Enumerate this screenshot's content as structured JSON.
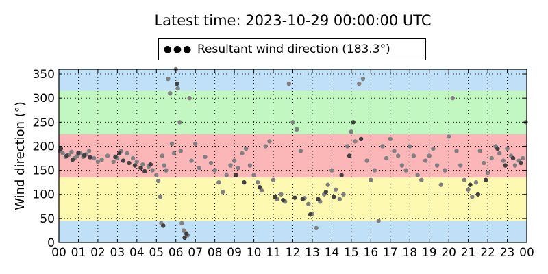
{
  "title": "Latest time: 2023-10-29 00:00:00 UTC",
  "legend": {
    "marker_icon": "three-dots-icon",
    "label": "Resultant wind direction (183.3°)"
  },
  "chart_data": {
    "type": "scatter",
    "title": "Latest time: 2023-10-29 00:00:00 UTC",
    "xlabel": "",
    "ylabel": "Wind direction (°)",
    "xlim": [
      0,
      24
    ],
    "ylim": [
      0,
      360
    ],
    "x_ticks": [
      "00",
      "01",
      "02",
      "03",
      "04",
      "05",
      "06",
      "07",
      "08",
      "09",
      "10",
      "11",
      "12",
      "13",
      "14",
      "15",
      "16",
      "17",
      "18",
      "19",
      "20",
      "21",
      "22",
      "23",
      "00"
    ],
    "y_ticks": [
      0,
      50,
      100,
      150,
      200,
      250,
      300,
      350
    ],
    "grid": true,
    "legend_position": "top-center",
    "series": [
      {
        "name": "Resultant wind direction (183.3°)",
        "color": "#808080",
        "points": [
          [
            0.05,
            190
          ],
          [
            0.2,
            185
          ],
          [
            0.35,
            178
          ],
          [
            0.5,
            182
          ],
          [
            0.65,
            188
          ],
          [
            0.8,
            175
          ],
          [
            0.95,
            180
          ],
          [
            1.1,
            185
          ],
          [
            1.25,
            178
          ],
          [
            1.4,
            183
          ],
          [
            1.55,
            190
          ],
          [
            1.8,
            175
          ],
          [
            2.0,
            168
          ],
          [
            2.2,
            172
          ],
          [
            2.5,
            180
          ],
          [
            2.8,
            168
          ],
          [
            3.0,
            175
          ],
          [
            3.2,
            190
          ],
          [
            3.5,
            185
          ],
          [
            3.8,
            175
          ],
          [
            4.0,
            168
          ],
          [
            4.3,
            162
          ],
          [
            4.6,
            158
          ],
          [
            4.8,
            150
          ],
          [
            5.0,
            140
          ],
          [
            5.1,
            128
          ],
          [
            5.2,
            95
          ],
          [
            5.25,
            40
          ],
          [
            5.3,
            180
          ],
          [
            5.4,
            160
          ],
          [
            5.5,
            150
          ],
          [
            5.6,
            340
          ],
          [
            5.7,
            310
          ],
          [
            5.8,
            205
          ],
          [
            5.9,
            185
          ],
          [
            6.0,
            360
          ],
          [
            6.1,
            320
          ],
          [
            6.2,
            250
          ],
          [
            6.25,
            190
          ],
          [
            6.3,
            40
          ],
          [
            6.4,
            25
          ],
          [
            6.5,
            20
          ],
          [
            6.6,
            15
          ],
          [
            6.7,
            300
          ],
          [
            6.8,
            170
          ],
          [
            7.0,
            205
          ],
          [
            7.2,
            155
          ],
          [
            7.5,
            178
          ],
          [
            7.8,
            165
          ],
          [
            8.0,
            150
          ],
          [
            8.2,
            125
          ],
          [
            8.4,
            105
          ],
          [
            8.6,
            140
          ],
          [
            8.8,
            160
          ],
          [
            9.0,
            170
          ],
          [
            9.2,
            155
          ],
          [
            9.4,
            185
          ],
          [
            9.6,
            195
          ],
          [
            9.8,
            160
          ],
          [
            10.0,
            140
          ],
          [
            10.2,
            125
          ],
          [
            10.4,
            108
          ],
          [
            10.6,
            200
          ],
          [
            10.8,
            210
          ],
          [
            11.0,
            130
          ],
          [
            11.2,
            90
          ],
          [
            11.4,
            100
          ],
          [
            11.6,
            85
          ],
          [
            11.8,
            330
          ],
          [
            12.0,
            250
          ],
          [
            12.2,
            235
          ],
          [
            12.4,
            190
          ],
          [
            12.6,
            92
          ],
          [
            12.8,
            80
          ],
          [
            13.0,
            60
          ],
          [
            13.2,
            30
          ],
          [
            13.4,
            85
          ],
          [
            13.6,
            100
          ],
          [
            13.8,
            120
          ],
          [
            14.0,
            150
          ],
          [
            14.2,
            110
          ],
          [
            14.4,
            90
          ],
          [
            14.6,
            100
          ],
          [
            14.8,
            200
          ],
          [
            15.0,
            230
          ],
          [
            15.2,
            210
          ],
          [
            15.4,
            330
          ],
          [
            15.6,
            340
          ],
          [
            15.8,
            170
          ],
          [
            16.0,
            130
          ],
          [
            16.2,
            150
          ],
          [
            16.4,
            45
          ],
          [
            16.6,
            200
          ],
          [
            16.8,
            175
          ],
          [
            17.0,
            215
          ],
          [
            17.2,
            190
          ],
          [
            17.4,
            180
          ],
          [
            17.6,
            160
          ],
          [
            17.8,
            150
          ],
          [
            18.0,
            200
          ],
          [
            18.2,
            180
          ],
          [
            18.4,
            140
          ],
          [
            18.6,
            130
          ],
          [
            18.8,
            170
          ],
          [
            19.0,
            180
          ],
          [
            19.2,
            195
          ],
          [
            19.4,
            160
          ],
          [
            19.6,
            120
          ],
          [
            19.8,
            150
          ],
          [
            20.0,
            220
          ],
          [
            20.2,
            300
          ],
          [
            20.4,
            190
          ],
          [
            20.6,
            160
          ],
          [
            20.8,
            130
          ],
          [
            21.0,
            110
          ],
          [
            21.2,
            95
          ],
          [
            21.4,
            125
          ],
          [
            21.6,
            190
          ],
          [
            21.8,
            165
          ],
          [
            22.0,
            145
          ],
          [
            22.2,
            175
          ],
          [
            22.4,
            200
          ],
          [
            22.6,
            185
          ],
          [
            22.8,
            170
          ],
          [
            23.0,
            195
          ],
          [
            23.2,
            180
          ],
          [
            23.4,
            160
          ],
          [
            23.6,
            170
          ],
          [
            23.8,
            175
          ],
          [
            23.95,
            250
          ]
        ]
      },
      {
        "name": "",
        "color": "#404040",
        "points": [
          [
            0.1,
            195
          ],
          [
            0.4,
            180
          ],
          [
            0.7,
            172
          ],
          [
            1.0,
            186
          ],
          [
            1.3,
            181
          ],
          [
            1.6,
            177
          ],
          [
            2.9,
            178
          ],
          [
            3.1,
            185
          ],
          [
            3.3,
            170
          ],
          [
            3.6,
            165
          ],
          [
            3.9,
            160
          ],
          [
            4.2,
            155
          ],
          [
            4.4,
            148
          ],
          [
            4.7,
            162
          ],
          [
            5.35,
            35
          ],
          [
            6.05,
            330
          ],
          [
            6.45,
            10
          ],
          [
            6.55,
            18
          ],
          [
            9.1,
            140
          ],
          [
            9.5,
            125
          ],
          [
            10.3,
            115
          ],
          [
            11.1,
            95
          ],
          [
            11.5,
            88
          ],
          [
            12.1,
            93
          ],
          [
            12.5,
            90
          ],
          [
            12.9,
            58
          ],
          [
            13.3,
            90
          ],
          [
            13.7,
            105
          ],
          [
            14.1,
            95
          ],
          [
            14.5,
            140
          ],
          [
            14.9,
            180
          ],
          [
            15.1,
            250
          ],
          [
            15.5,
            215
          ],
          [
            21.1,
            120
          ],
          [
            21.5,
            100
          ],
          [
            21.9,
            130
          ],
          [
            22.5,
            195
          ],
          [
            22.9,
            160
          ],
          [
            23.3,
            175
          ],
          [
            23.7,
            165
          ]
        ]
      }
    ],
    "bands": [
      {
        "from": 0,
        "to": 45,
        "color": "#bfe0f7"
      },
      {
        "from": 45,
        "to": 135,
        "color": "#fdf9b0"
      },
      {
        "from": 135,
        "to": 225,
        "color": "#fbb6b8"
      },
      {
        "from": 225,
        "to": 315,
        "color": "#c2f7c2"
      },
      {
        "from": 315,
        "to": 360,
        "color": "#bfe0f7"
      }
    ]
  }
}
